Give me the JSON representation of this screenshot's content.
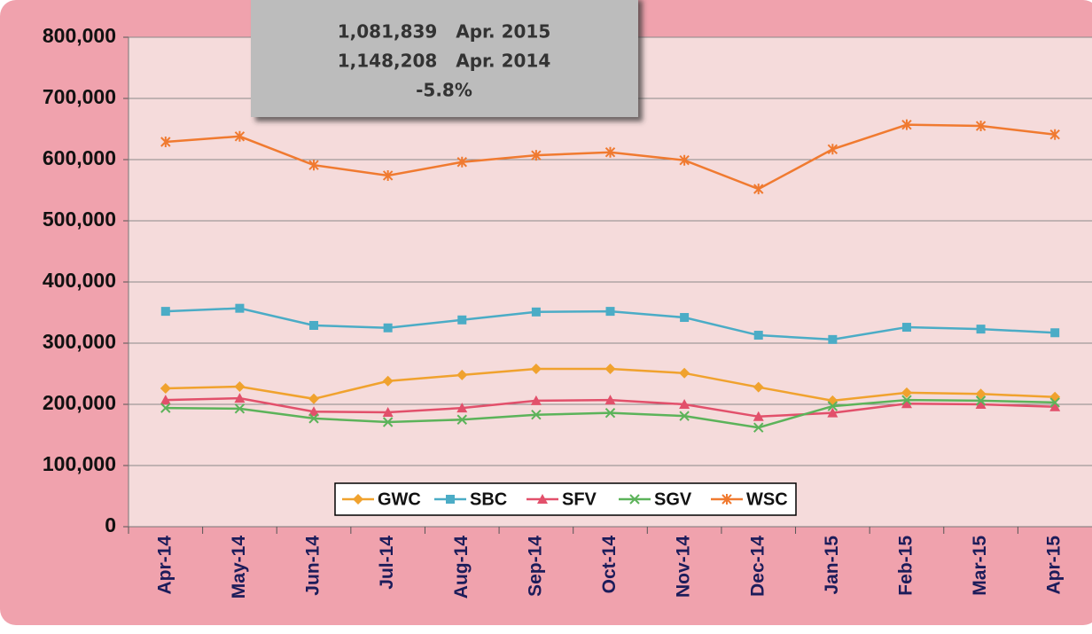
{
  "chart_data": {
    "type": "line",
    "categories": [
      "Apr-14",
      "May-14",
      "Jun-14",
      "Jul-14",
      "Aug-14",
      "Sep-14",
      "Oct-14",
      "Nov-14",
      "Dec-14",
      "Jan-15",
      "Feb-15",
      "Mar-15",
      "Apr-15"
    ],
    "series": [
      {
        "name": "GWC",
        "color": "#f0a22e",
        "marker": "diamond",
        "values": [
          226000,
          229000,
          209000,
          238000,
          248000,
          258000,
          258000,
          251000,
          228000,
          206000,
          219000,
          217000,
          212000
        ]
      },
      {
        "name": "SBC",
        "color": "#4bacc6",
        "marker": "square",
        "values": [
          352000,
          357000,
          329000,
          325000,
          338000,
          351000,
          352000,
          342000,
          313000,
          306000,
          326000,
          323000,
          317000
        ]
      },
      {
        "name": "SFV",
        "color": "#e2506b",
        "marker": "triangle",
        "values": [
          207000,
          210000,
          188000,
          187000,
          194000,
          206000,
          207000,
          200000,
          180000,
          186000,
          201000,
          200000,
          196000
        ]
      },
      {
        "name": "SGV",
        "color": "#5cb35a",
        "marker": "x",
        "values": [
          194000,
          193000,
          177000,
          171000,
          175000,
          183000,
          186000,
          181000,
          162000,
          197000,
          207000,
          206000,
          203000
        ]
      },
      {
        "name": "WSC",
        "color": "#f07a30",
        "marker": "star",
        "values": [
          629000,
          638000,
          591000,
          574000,
          596000,
          607000,
          612000,
          599000,
          552000,
          617000,
          657000,
          655000,
          641000
        ]
      }
    ],
    "ylim": [
      0,
      800000
    ],
    "yticks": [
      0,
      {
        "value": 100000,
        "label": "100,000"
      },
      {
        "value": 200000,
        "label": "200,000"
      },
      {
        "value": 300000,
        "label": "300,000"
      },
      {
        "value": 400000,
        "label": "400,000"
      },
      {
        "value": 500000,
        "label": "500,000"
      },
      {
        "value": 600000,
        "label": "600,000"
      },
      {
        "value": 700000,
        "label": "700,000"
      },
      {
        "value": 800000,
        "label": "800,000"
      }
    ],
    "grid": true,
    "legend": "bottom",
    "annotation": [
      "1,081,839   Apr. 2015",
      "1,148,208   Apr. 2014",
      "-5.8%"
    ]
  }
}
